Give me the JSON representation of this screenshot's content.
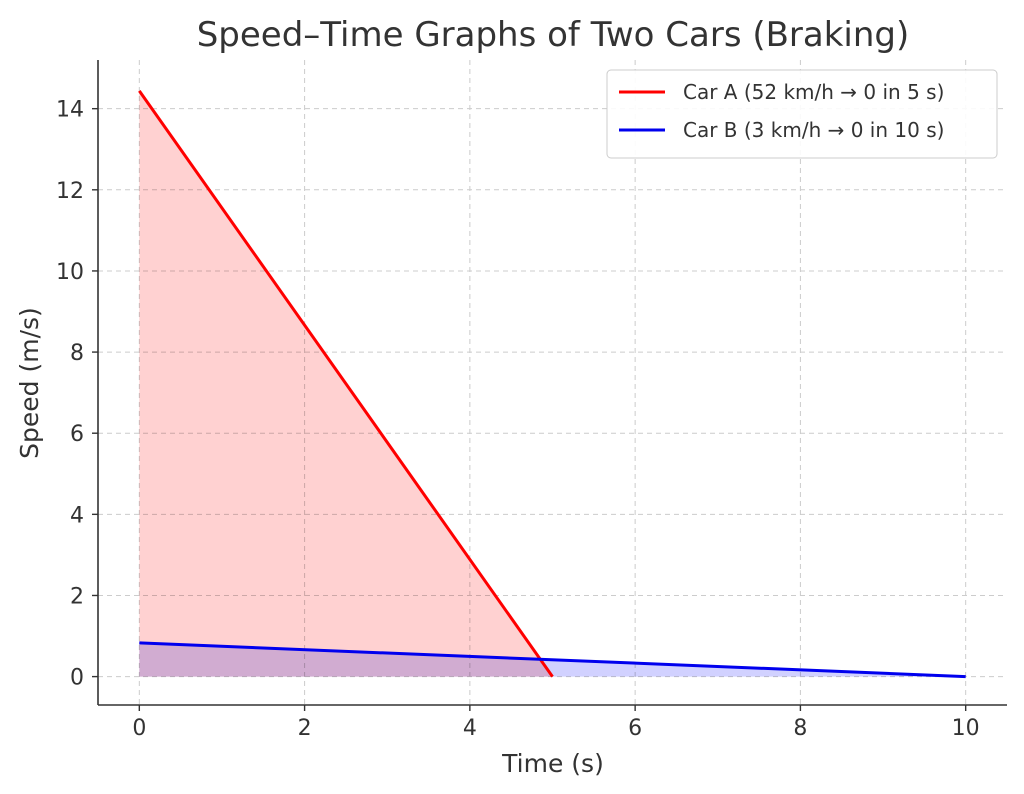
{
  "chart_data": {
    "type": "line",
    "title": "Speed–Time Graphs of Two Cars (Braking)",
    "xlabel": "Time (s)",
    "ylabel": "Speed (m/s)",
    "xlim": [
      -0.5,
      10.5
    ],
    "ylim": [
      -0.7,
      15.2
    ],
    "xticks": [
      0,
      2,
      4,
      6,
      8,
      10
    ],
    "xtick_labels": [
      "0",
      "2",
      "4",
      "6",
      "8",
      "10"
    ],
    "yticks": [
      0,
      2,
      4,
      6,
      8,
      10,
      12,
      14
    ],
    "ytick_labels": [
      "0",
      "2",
      "4",
      "6",
      "8",
      "10",
      "12",
      "14"
    ],
    "grid": true,
    "legend_position": "top-right",
    "series": [
      {
        "name": "Car A (52 km/h → 0 in 5 s)",
        "color": "#ff0000",
        "fill_color": "#ffcccc",
        "x": [
          0,
          5
        ],
        "y": [
          14.44,
          0
        ]
      },
      {
        "name": "Car B (3 km/h → 0 in 10 s)",
        "color": "#0000ee",
        "fill_color": "#ccccff",
        "x": [
          0,
          10
        ],
        "y": [
          0.83,
          0
        ]
      }
    ]
  }
}
